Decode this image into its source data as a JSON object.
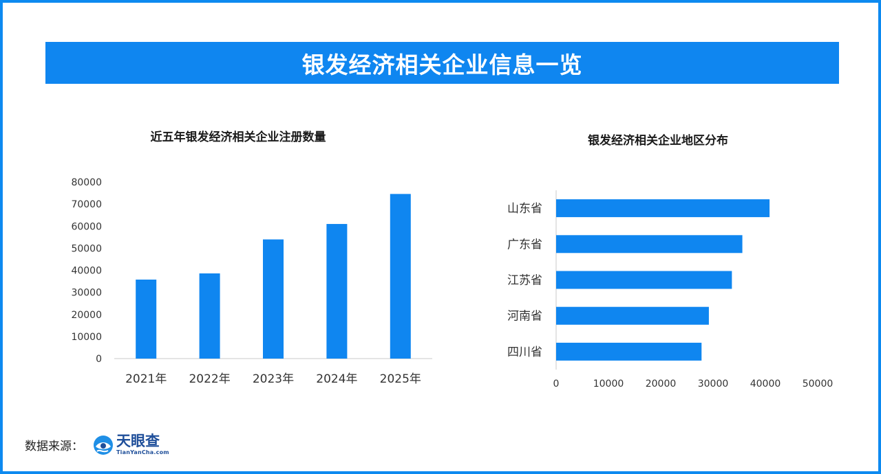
{
  "banner": {
    "title": "银发经济相关企业信息一览"
  },
  "chart_data": [
    {
      "type": "bar",
      "title": "近五年银发经济相关企业注册数量",
      "categories": [
        "2021年",
        "2022年",
        "2023年",
        "2024年",
        "2025年"
      ],
      "values": [
        35800,
        38600,
        54000,
        61000,
        74600
      ],
      "ylim": [
        0,
        80000
      ],
      "yticks": [
        0,
        10000,
        20000,
        30000,
        40000,
        50000,
        60000,
        70000,
        80000
      ],
      "grid": false,
      "xlabel": "",
      "ylabel": "",
      "color": "#0f86f0"
    },
    {
      "type": "bar",
      "orientation": "horizontal",
      "title": "银发经济相关企业地区分布",
      "categories": [
        "山东省",
        "广东省",
        "江苏省",
        "河南省",
        "四川省"
      ],
      "values": [
        40800,
        35600,
        33600,
        29200,
        27800
      ],
      "xlim": [
        0,
        50000
      ],
      "xticks": [
        0,
        10000,
        20000,
        30000,
        40000,
        50000
      ],
      "grid": false,
      "xlabel": "",
      "ylabel": "",
      "color": "#0f86f0"
    }
  ],
  "footer": {
    "source_label": "数据来源：",
    "logo_name": "天眼查",
    "logo_url": "TianYanCha.com"
  }
}
